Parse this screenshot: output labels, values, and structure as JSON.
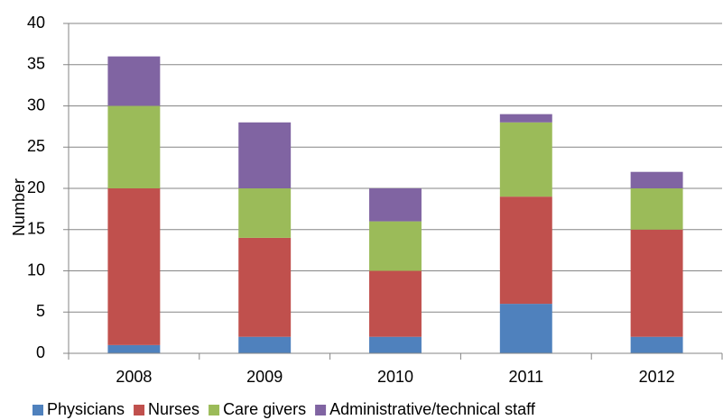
{
  "chart_data": {
    "type": "stacked_bar",
    "y_label": "Number",
    "categories": [
      "2008",
      "2009",
      "2010",
      "2011",
      "2012"
    ],
    "series": [
      {
        "name": "Physicians",
        "color": "#4f81bd",
        "values": [
          1,
          2,
          2,
          6,
          2
        ]
      },
      {
        "name": "Nurses",
        "color": "#c0504d",
        "values": [
          19,
          12,
          8,
          13,
          13
        ]
      },
      {
        "name": "Care givers",
        "color": "#9bbb59",
        "values": [
          10,
          6,
          6,
          9,
          5
        ]
      },
      {
        "name": "Administrative/technical staff",
        "color": "#8064a2",
        "values": [
          6,
          8,
          4,
          1,
          2
        ]
      }
    ],
    "ylim": [
      0,
      40
    ],
    "yticks": [
      0,
      5,
      10,
      15,
      20,
      25,
      30,
      35,
      40
    ],
    "grid": true,
    "legend": "bottom"
  }
}
